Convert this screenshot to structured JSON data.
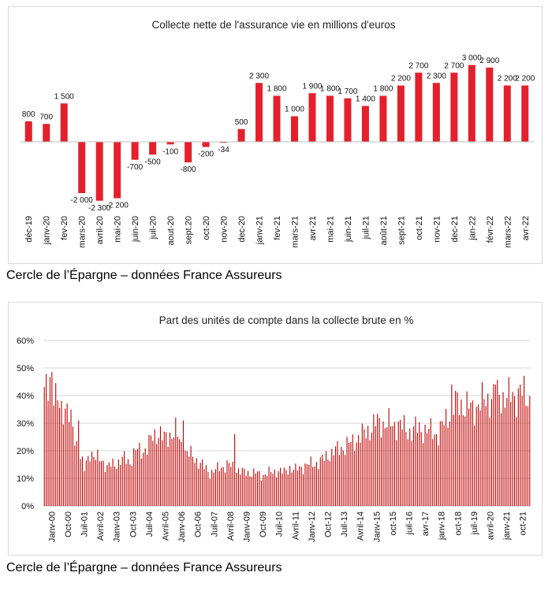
{
  "chart_data": [
    {
      "type": "bar",
      "title": "Collecte nette de l'assurance vie en millions d'euros",
      "categories": [
        "déc-19",
        "janv-20",
        "fev-20",
        "mars-20",
        "avril-20",
        "mai-20",
        "juin-20",
        "juil-20",
        "aout-20",
        "sept.20",
        "oct-20",
        "nov-20",
        "dec-20",
        "janv-21",
        "fev-21",
        "mars-21",
        "avr-21",
        "mai-21",
        "juin-21",
        "juil-21",
        "août-21",
        "sept-21",
        "oct-21",
        "nov-21",
        "dec-21",
        "jan-22",
        "févr-22",
        "mars-22",
        "avr-22"
      ],
      "values": [
        800,
        700,
        1500,
        -2000,
        -2300,
        -2200,
        -700,
        -500,
        -100,
        -800,
        -200,
        -34,
        500,
        2300,
        1800,
        1000,
        1900,
        1800,
        1700,
        1400,
        1800,
        2200,
        2700,
        2300,
        2700,
        3000,
        2900,
        2200,
        2200
      ],
      "labels": [
        "800",
        "700",
        "1 500",
        "-2 000",
        "-2 300",
        "-2 200",
        "-700",
        "-500",
        "-100",
        "-800",
        "-200",
        "-34",
        "500",
        "2 300",
        "1 800",
        "1 000",
        "1 900",
        "1 800",
        "1 700",
        "1 400",
        "1 800",
        "2 200",
        "2 700",
        "2 300",
        "2 700",
        "3 000",
        "2 900",
        "2 200",
        "2 200"
      ],
      "color": "#e3202b",
      "source": "Cercle de l’Épargne – données France Assureurs"
    },
    {
      "type": "bar",
      "title": "Part des unités de compte dans la collecte brute en %",
      "ylim": [
        0,
        60
      ],
      "yticks": [
        "0%",
        "10%",
        "20%",
        "30%",
        "40%",
        "50%",
        "60%"
      ],
      "xticks": [
        "Janv-00",
        "Oct-00",
        "Juil-01",
        "Avril-02",
        "Janv-03",
        "Oct-03",
        "Juil-04",
        "Avril-05",
        "Janv-06",
        "Oct-06",
        "Juil-07",
        "Avril-08",
        "Janv-09",
        "Oct-09",
        "Juil-10",
        "Avril-11",
        "Janv-12",
        "Oct-12",
        "Juil-13",
        "Avril-14",
        "Janv-15",
        "oct-15",
        "juil-16",
        "avr-17",
        "janv-18",
        "oct-18",
        "juil-19",
        "avril-20",
        "janv-21",
        "oct-21"
      ],
      "grid": true,
      "color": "#c00000",
      "anchors": [
        [
          0,
          40
        ],
        [
          3,
          47
        ],
        [
          6,
          38
        ],
        [
          9,
          35
        ],
        [
          11,
          37
        ],
        [
          14,
          30
        ],
        [
          18,
          20
        ],
        [
          21,
          13
        ],
        [
          24,
          20
        ],
        [
          27,
          17
        ],
        [
          30,
          17
        ],
        [
          33,
          14
        ],
        [
          36,
          15
        ],
        [
          39,
          16
        ],
        [
          42,
          17
        ],
        [
          45,
          16
        ],
        [
          48,
          20
        ],
        [
          51,
          20
        ],
        [
          54,
          21
        ],
        [
          57,
          25
        ],
        [
          60,
          27
        ],
        [
          63,
          24
        ],
        [
          66,
          26
        ],
        [
          69,
          27
        ],
        [
          72,
          22
        ],
        [
          75,
          19
        ],
        [
          78,
          18
        ],
        [
          81,
          16
        ],
        [
          84,
          14
        ],
        [
          87,
          12
        ],
        [
          90,
          13
        ],
        [
          93,
          14
        ],
        [
          96,
          15
        ],
        [
          99,
          14
        ],
        [
          102,
          13
        ],
        [
          105,
          12
        ],
        [
          108,
          12
        ],
        [
          111,
          12
        ],
        [
          114,
          11
        ],
        [
          117,
          12
        ],
        [
          120,
          12
        ],
        [
          123,
          13
        ],
        [
          126,
          12
        ],
        [
          129,
          14
        ],
        [
          132,
          13
        ],
        [
          135,
          14
        ],
        [
          138,
          15
        ],
        [
          141,
          15
        ],
        [
          144,
          16
        ],
        [
          147,
          17
        ],
        [
          150,
          19
        ],
        [
          153,
          20
        ],
        [
          156,
          21
        ],
        [
          159,
          22
        ],
        [
          162,
          23
        ],
        [
          165,
          25
        ],
        [
          168,
          26
        ],
        [
          171,
          28
        ],
        [
          174,
          30
        ],
        [
          177,
          30
        ],
        [
          180,
          30
        ],
        [
          183,
          29
        ],
        [
          186,
          30
        ],
        [
          189,
          28
        ],
        [
          192,
          27
        ],
        [
          195,
          28
        ],
        [
          198,
          28
        ],
        [
          201,
          27
        ],
        [
          204,
          27
        ],
        [
          207,
          26
        ],
        [
          210,
          30
        ],
        [
          213,
          34
        ],
        [
          216,
          37
        ],
        [
          219,
          37
        ],
        [
          222,
          36
        ],
        [
          225,
          35
        ],
        [
          228,
          37
        ],
        [
          231,
          38
        ],
        [
          234,
          39
        ],
        [
          237,
          40
        ],
        [
          240,
          40
        ],
        [
          243,
          39
        ],
        [
          246,
          40
        ],
        [
          249,
          40
        ],
        [
          252,
          40
        ],
        [
          255,
          39
        ]
      ],
      "spikes": [
        [
          4,
          48.5
        ],
        [
          18,
          31
        ],
        [
          73,
          31
        ],
        [
          100,
          26
        ],
        [
          214,
          44
        ],
        [
          237,
          44
        ],
        [
          250,
          44
        ]
      ],
      "source": "Cercle de l’Épargne – données France Assureurs"
    }
  ]
}
